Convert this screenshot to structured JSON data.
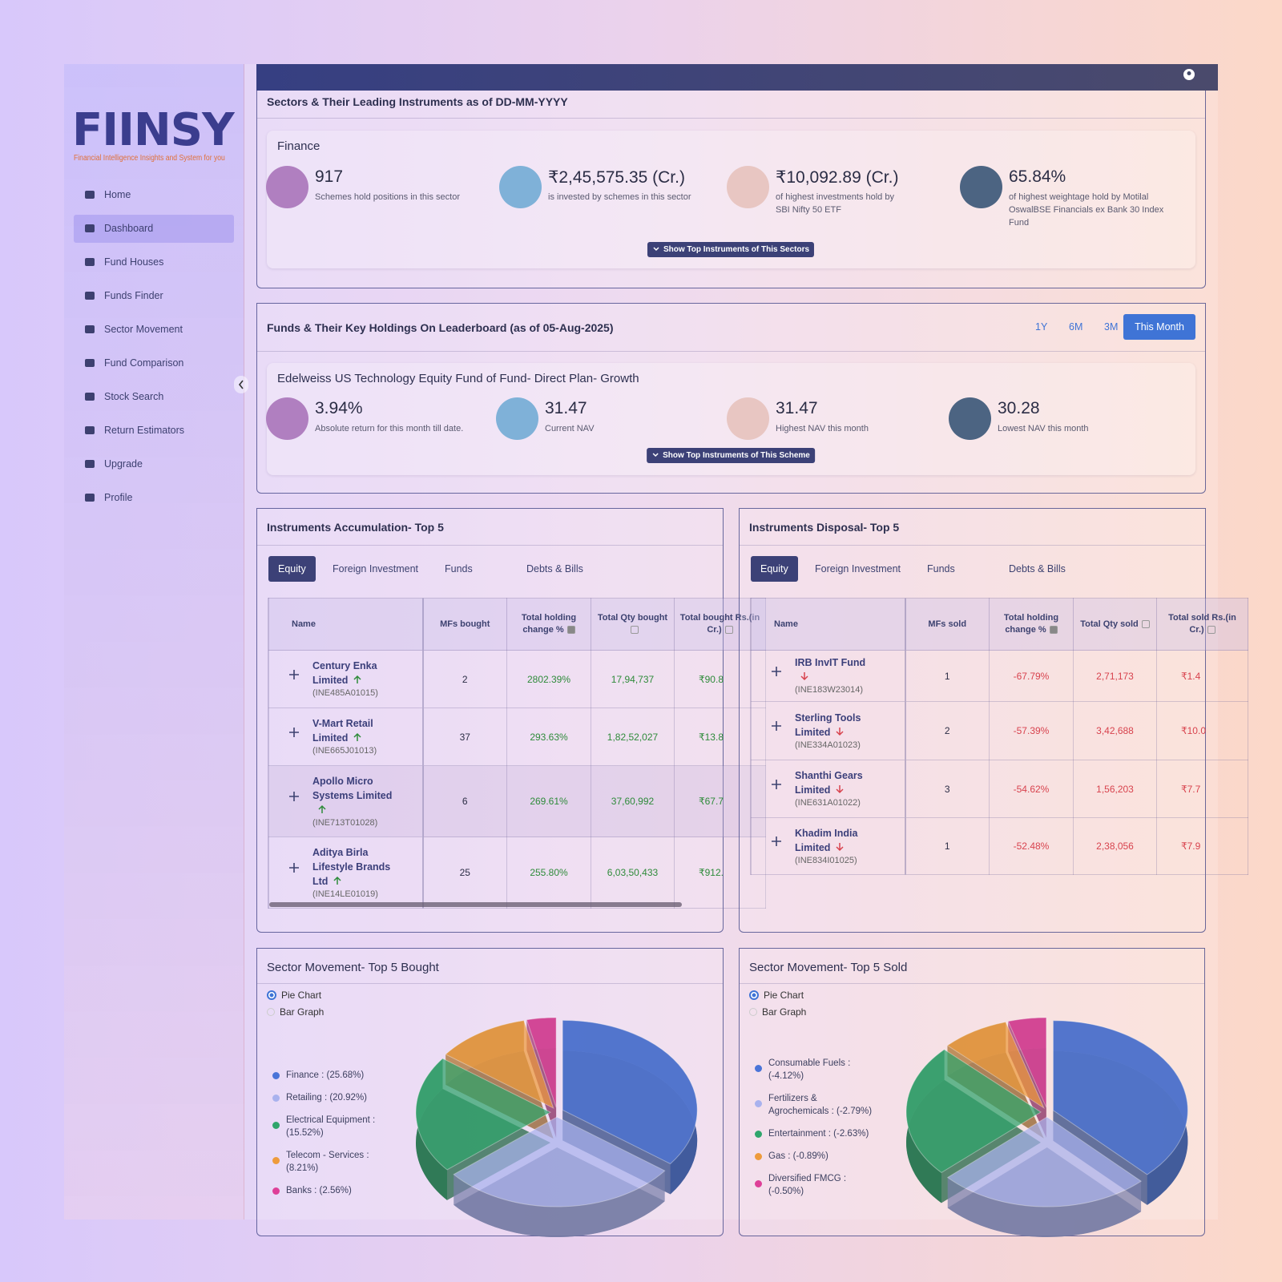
{
  "sidebar": {
    "logo": "FIINSY",
    "tagline": "Financial Intelligence Insights and System for you",
    "nav": [
      "Home",
      "Dashboard",
      "Fund Houses",
      "Funds Finder",
      "Sector Movement",
      "Fund Comparison",
      "Stock Search",
      "Return Estimators",
      "Upgrade",
      "Profile"
    ]
  },
  "sector_card": {
    "title": "Sectors & Their Leading Instruments as of DD-MM-YYYY",
    "sector": "Finance",
    "stats": [
      {
        "value": "917",
        "text": "Schemes hold positions in this sector"
      },
      {
        "value": "₹2,45,575.35 (Cr.)",
        "text": "is invested by schemes in this sector"
      },
      {
        "value": "₹10,092.89 (Cr.)",
        "text": "of highest investments hold by SBI Nifty 50 ETF"
      },
      {
        "value": "65.84%",
        "text": "of highest weightage hold by Motilal OswalBSE Financials ex Bank 30 Index Fund"
      }
    ],
    "button": "Show Top Instruments of This Sectors"
  },
  "fund_card": {
    "title": "Funds & Their Key Holdings On Leaderboard (as of 05-Aug-2025)",
    "periods": [
      "1Y",
      "6M",
      "3M",
      "This Month"
    ],
    "fund": "Edelweiss US Technology Equity Fund of Fund- Direct Plan- Growth",
    "stats": [
      {
        "value": "3.94%",
        "text": "Absolute return for this month till date."
      },
      {
        "value": "31.47",
        "text": "Current NAV"
      },
      {
        "value": "31.47",
        "text": "Highest NAV this month"
      },
      {
        "value": "30.28",
        "text": "Lowest NAV this month"
      }
    ],
    "button": "Show Top Instruments of This Scheme"
  },
  "accumulation": {
    "title": "Instruments Accumulation- Top 5",
    "tabs": [
      "Equity",
      "Foreign Investment",
      "Funds",
      "Debts & Bills"
    ],
    "columns": [
      "Name",
      "MFs bought",
      "Total holding change %",
      "Total Qty bought",
      "Total bought Rs.(in Cr.)"
    ],
    "rows": [
      {
        "name": "Century Enka Limited",
        "isin": "(INE485A01015)",
        "cells": [
          "2",
          "2802.39%",
          "17,94,737",
          "₹90.8"
        ]
      },
      {
        "name": "V-Mart Retail Limited",
        "isin": "(INE665J01013)",
        "cells": [
          "37",
          "293.63%",
          "1,82,52,027",
          "₹13.8"
        ]
      },
      {
        "name": "Apollo Micro Systems Limited",
        "isin": "(INE713T01028)",
        "cells": [
          "6",
          "269.61%",
          "37,60,992",
          "₹67.7"
        ]
      },
      {
        "name": "Aditya Birla Lifestyle Brands Ltd",
        "isin": "(INE14LE01019)",
        "cells": [
          "25",
          "255.80%",
          "6,03,50,433",
          "₹912."
        ]
      }
    ]
  },
  "disposal": {
    "title": "Instruments Disposal- Top 5",
    "tabs": [
      "Equity",
      "Foreign Investment",
      "Funds",
      "Debts & Bills"
    ],
    "columns": [
      "Name",
      "MFs sold",
      "Total holding change %",
      "Total Qty sold",
      "Total sold Rs.(in Cr.)"
    ],
    "rows": [
      {
        "name": "IRB InvIT Fund",
        "isin": "(INE183W23014)",
        "cells": [
          "1",
          "-67.79%",
          "2,71,173",
          "₹1.4"
        ]
      },
      {
        "name": "Sterling Tools Limited",
        "isin": "(INE334A01023)",
        "cells": [
          "2",
          "-57.39%",
          "3,42,688",
          "₹10.0"
        ]
      },
      {
        "name": "Shanthi Gears Limited",
        "isin": "(INE631A01022)",
        "cells": [
          "3",
          "-54.62%",
          "1,56,203",
          "₹7.7"
        ]
      },
      {
        "name": "Khadim India Limited",
        "isin": "(INE834I01025)",
        "cells": [
          "1",
          "-52.48%",
          "2,38,056",
          "₹7.9"
        ]
      }
    ]
  },
  "chart_data": [
    {
      "type": "pie",
      "title": "Sector Movement- Top 5 Bought",
      "options": [
        "Pie Chart",
        "Bar Graph"
      ],
      "categories": [
        "Finance : (25.68%)",
        "Retailing : (20.92%)",
        "Electrical Equipment : (15.52%)",
        "Telecom - Services : (8.21%)",
        "Banks : (2.56%)"
      ],
      "values": [
        25.68,
        20.92,
        15.52,
        8.21,
        2.56
      ],
      "colors": [
        "#4a74d8",
        "#a9b2ee",
        "#2fa56c",
        "#ee9b3c",
        "#de3f98"
      ]
    },
    {
      "type": "pie",
      "title": "Sector Movement- Top 5 Sold",
      "options": [
        "Pie Chart",
        "Bar Graph"
      ],
      "categories": [
        "Consumable Fuels : (-4.12%)",
        "Fertilizers & Agrochemicals : (-2.79%)",
        "Entertainment : (-2.63%)",
        "Gas : (-0.89%)",
        "Diversified FMCG : (-0.50%)"
      ],
      "values": [
        -4.12,
        -2.79,
        -2.63,
        -0.89,
        -0.5
      ],
      "colors": [
        "#4a74d8",
        "#a9b2ee",
        "#2fa56c",
        "#ee9b3c",
        "#de3f98"
      ]
    }
  ]
}
